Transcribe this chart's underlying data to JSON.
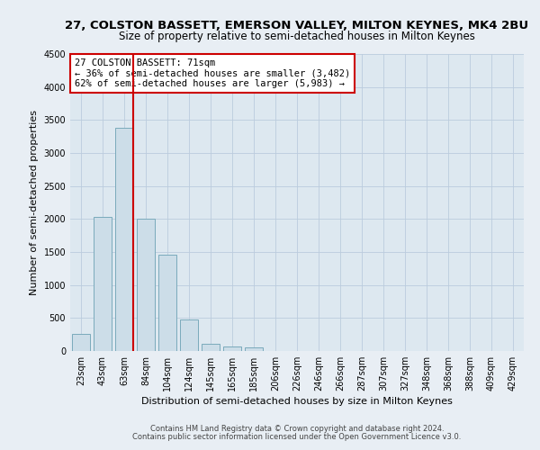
{
  "title": "27, COLSTON BASSETT, EMERSON VALLEY, MILTON KEYNES, MK4 2BU",
  "subtitle": "Size of property relative to semi-detached houses in Milton Keynes",
  "xlabel": "Distribution of semi-detached houses by size in Milton Keynes",
  "ylabel": "Number of semi-detached properties",
  "footer_line1": "Contains HM Land Registry data © Crown copyright and database right 2024.",
  "footer_line2": "Contains public sector information licensed under the Open Government Licence v3.0.",
  "categories": [
    "23sqm",
    "43sqm",
    "63sqm",
    "84sqm",
    "104sqm",
    "124sqm",
    "145sqm",
    "165sqm",
    "185sqm",
    "206sqm",
    "226sqm",
    "246sqm",
    "266sqm",
    "287sqm",
    "307sqm",
    "327sqm",
    "348sqm",
    "368sqm",
    "388sqm",
    "409sqm",
    "429sqm"
  ],
  "values": [
    255,
    2030,
    3380,
    2010,
    1460,
    475,
    105,
    65,
    55,
    0,
    0,
    0,
    0,
    0,
    0,
    0,
    0,
    0,
    0,
    0,
    0
  ],
  "bar_color": "#ccdde8",
  "bar_edge_color": "#7aaabb",
  "marker_color": "#cc0000",
  "annotation_text": "27 COLSTON BASSETT: 71sqm\n← 36% of semi-detached houses are smaller (3,482)\n62% of semi-detached houses are larger (5,983) →",
  "annotation_box_color": "#cc0000",
  "ylim": [
    0,
    4500
  ],
  "yticks": [
    0,
    500,
    1000,
    1500,
    2000,
    2500,
    3000,
    3500,
    4000,
    4500
  ],
  "grid_color": "#bbccdd",
  "bg_color": "#dde8f0",
  "fig_bg_color": "#e8eef4",
  "title_fontsize": 9.5,
  "subtitle_fontsize": 8.5,
  "xlabel_fontsize": 8,
  "ylabel_fontsize": 8,
  "tick_fontsize": 7,
  "annotation_fontsize": 7.5,
  "footer_fontsize": 6
}
